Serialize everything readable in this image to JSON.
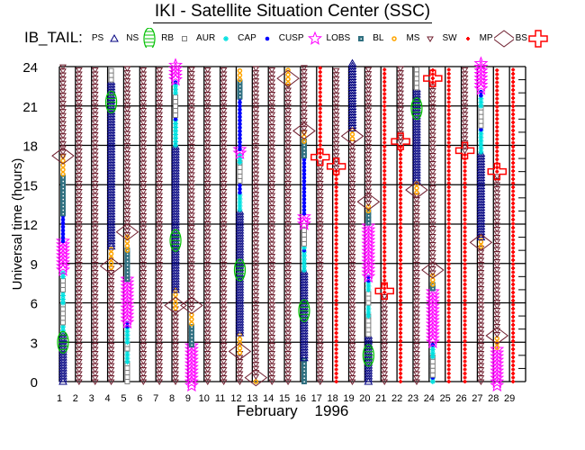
{
  "title": "IKI - Satellite Situation Center (SSC)",
  "satellite_label": "IB_TAIL:",
  "legend": [
    {
      "label": "PS",
      "symbol": "triangle-up",
      "color": "#000080"
    },
    {
      "label": "NS",
      "symbol": "circle",
      "color": "#00c000"
    },
    {
      "label": "RB",
      "symbol": "square",
      "color": "#808080"
    },
    {
      "label": "AUR",
      "symbol": "asterisk",
      "color": "#00e0e0"
    },
    {
      "label": "CAP",
      "symbol": "dot",
      "color": "#0000ff"
    },
    {
      "label": "CUSP",
      "symbol": "star",
      "color": "#ff00ff"
    },
    {
      "label": "LOBS",
      "symbol": "filled-square",
      "color": "#307080"
    },
    {
      "label": "BL",
      "symbol": "sun",
      "color": "#ffa500"
    },
    {
      "label": "MS",
      "symbol": "triangle-down",
      "color": "#702030"
    },
    {
      "label": "SW",
      "symbol": "splat",
      "color": "#ff0000"
    },
    {
      "label": "MP",
      "symbol": "diamond",
      "color": "#702030"
    },
    {
      "label": "BS",
      "symbol": "cross",
      "color": "#ff0000"
    }
  ],
  "chart_data": {
    "type": "scatter",
    "title": "IKI - Satellite Situation Center (SSC)",
    "xlabel": "February    1996",
    "ylabel": "Universal time (hours)",
    "xlim": [
      1,
      30
    ],
    "ylim": [
      0,
      24
    ],
    "xticks": [
      1,
      2,
      3,
      4,
      5,
      6,
      7,
      8,
      9,
      10,
      11,
      12,
      13,
      14,
      15,
      16,
      17,
      18,
      19,
      20,
      21,
      22,
      23,
      24,
      25,
      26,
      27,
      28,
      29
    ],
    "yticks": [
      0,
      3,
      6,
      9,
      12,
      15,
      18,
      21,
      24
    ],
    "grid": true,
    "segment_format": [
      "region",
      "from_hour",
      "to_hour"
    ],
    "marker_format": [
      "region",
      "hour"
    ],
    "days": [
      {
        "day": 1,
        "segments": [
          [
            "PS",
            0,
            3.9
          ],
          [
            "AUR",
            3.9,
            4.5
          ],
          [
            "RB",
            4.5,
            6
          ],
          [
            "AUR",
            6,
            7
          ],
          [
            "RB",
            7,
            8
          ],
          [
            "AUR",
            8,
            8.5
          ],
          [
            "CUSP",
            8.5,
            10.7
          ],
          [
            "CAP",
            10.7,
            12.8
          ],
          [
            "LOBS",
            12.8,
            15.8
          ],
          [
            "BL",
            15.8,
            17.2
          ],
          [
            "MS",
            17.2,
            24
          ]
        ],
        "markers": [
          [
            "NS",
            3
          ],
          [
            "MP",
            17.2
          ]
        ]
      },
      {
        "day": 2,
        "segments": [
          [
            "MS",
            0,
            24
          ]
        ],
        "markers": []
      },
      {
        "day": 3,
        "segments": [
          [
            "MS",
            0,
            24
          ]
        ],
        "markers": []
      },
      {
        "day": 4,
        "segments": [
          [
            "MS",
            0,
            8.7
          ],
          [
            "BL",
            8.7,
            10.3
          ],
          [
            "PS",
            10.3,
            23
          ],
          [
            "RB",
            23,
            24
          ]
        ],
        "markers": [
          [
            "MP",
            8.8
          ],
          [
            "NS",
            21.3
          ]
        ]
      },
      {
        "day": 5,
        "segments": [
          [
            "RB",
            0,
            1.5
          ],
          [
            "AUR",
            1.5,
            2.5
          ],
          [
            "RB",
            2.5,
            3
          ],
          [
            "AUR",
            3,
            4.2
          ],
          [
            "CAP",
            4.2,
            4.5
          ],
          [
            "CUSP",
            4.5,
            7.8
          ],
          [
            "LOBS",
            7.8,
            10
          ],
          [
            "BL",
            10,
            11.2
          ],
          [
            "MS",
            11.2,
            24
          ]
        ],
        "markers": [
          [
            "MP",
            11.4
          ]
        ]
      },
      {
        "day": 6,
        "segments": [
          [
            "MS",
            0,
            24
          ]
        ],
        "markers": []
      },
      {
        "day": 7,
        "segments": [
          [
            "MS",
            0,
            24
          ]
        ],
        "markers": []
      },
      {
        "day": 8,
        "segments": [
          [
            "MS",
            0,
            5.6
          ],
          [
            "BL",
            5.6,
            7
          ],
          [
            "PS",
            7,
            18
          ],
          [
            "AUR",
            18,
            20
          ],
          [
            "CAP",
            20,
            20.3
          ],
          [
            "RB",
            20.3,
            22
          ],
          [
            "AUR",
            22,
            22.8
          ],
          [
            "CAP",
            22.8,
            23
          ],
          [
            "CUSP",
            23,
            24.3
          ]
        ],
        "markers": [
          [
            "MP",
            5.8
          ],
          [
            "NS",
            10.75
          ]
        ]
      },
      {
        "day": 9,
        "segments": [
          [
            "CUSP",
            -0.3,
            2.8
          ],
          [
            "LOBS",
            2.8,
            4.4
          ],
          [
            "BL",
            4.4,
            5.4
          ],
          [
            "MS",
            5.6,
            24
          ]
        ],
        "markers": [
          [
            "MP",
            5.8
          ]
        ]
      },
      {
        "day": 10,
        "segments": [
          [
            "MS",
            0,
            24
          ]
        ],
        "markers": []
      },
      {
        "day": 11,
        "segments": [
          [
            "MS",
            0,
            24
          ]
        ],
        "markers": []
      },
      {
        "day": 12,
        "segments": [
          [
            "MS",
            0,
            2.2
          ],
          [
            "BL",
            2.2,
            3.7
          ],
          [
            "PS",
            3.7,
            13.1
          ],
          [
            "AUR",
            13.1,
            14.4
          ],
          [
            "CAP",
            14.4,
            15.3
          ],
          [
            "RB",
            15.3,
            16.7
          ],
          [
            "AUR",
            16.7,
            17.4
          ],
          [
            "CUSP",
            17.4,
            17.7
          ],
          [
            "CAP",
            17.7,
            21.7
          ],
          [
            "LOBS",
            21.7,
            23
          ],
          [
            "BL",
            23,
            24
          ]
        ],
        "markers": [
          [
            "MP",
            2.3
          ],
          [
            "NS",
            8.5
          ]
        ]
      },
      {
        "day": 13,
        "segments": [
          [
            "BL",
            0,
            0.2
          ],
          [
            "MS",
            0.4,
            24
          ]
        ],
        "markers": [
          [
            "MP",
            0.3
          ]
        ]
      },
      {
        "day": 14,
        "segments": [
          [
            "MS",
            0,
            24
          ]
        ],
        "markers": []
      },
      {
        "day": 15,
        "segments": [
          [
            "MS",
            0,
            22.7
          ],
          [
            "BL",
            22.7,
            24
          ]
        ],
        "markers": [
          [
            "MP",
            23.1
          ]
        ]
      },
      {
        "day": 16,
        "segments": [
          [
            "LOBS",
            0,
            1.8
          ],
          [
            "PS",
            1.8,
            8.5
          ],
          [
            "AUR",
            8.5,
            10
          ],
          [
            "CAP",
            10,
            10.2
          ],
          [
            "AUR",
            10.2,
            10.5
          ],
          [
            "RB",
            10.5,
            12
          ],
          [
            "CUSP",
            12,
            12.8
          ],
          [
            "CAP",
            12.8,
            17.2
          ],
          [
            "LOBS",
            17.2,
            18.3
          ],
          [
            "BL",
            18.3,
            19
          ],
          [
            "MS",
            19,
            24
          ]
        ],
        "markers": [
          [
            "NS",
            5.4
          ],
          [
            "MP",
            19.1
          ]
        ]
      },
      {
        "day": 17,
        "segments": [
          [
            "MS",
            0,
            16.9
          ],
          [
            "SW",
            17.1,
            24
          ]
        ],
        "markers": [
          [
            "BS",
            17.1
          ]
        ]
      },
      {
        "day": 18,
        "segments": [
          [
            "SW",
            0,
            16.3
          ],
          [
            "MS",
            16.3,
            24
          ]
        ],
        "markers": [
          [
            "BS",
            16.4
          ]
        ]
      },
      {
        "day": 19,
        "segments": [
          [
            "MS",
            0,
            18.5
          ],
          [
            "BL",
            18.5,
            19.3
          ],
          [
            "PS",
            19.3,
            24.3
          ]
        ],
        "markers": [
          [
            "MP",
            18.7
          ]
        ]
      },
      {
        "day": 20,
        "segments": [
          [
            "PS",
            0,
            3.6
          ],
          [
            "RB",
            3.6,
            5
          ],
          [
            "AUR",
            5,
            6
          ],
          [
            "RB",
            6,
            7
          ],
          [
            "AUR",
            7,
            7.7
          ],
          [
            "CAP",
            7.7,
            8
          ],
          [
            "CUSP",
            8,
            12.1
          ],
          [
            "LOBS",
            12.1,
            13
          ],
          [
            "BL",
            13,
            13.4
          ],
          [
            "MS",
            13.6,
            24
          ]
        ],
        "markers": [
          [
            "NS",
            2
          ],
          [
            "MP",
            13.7
          ]
        ]
      },
      {
        "day": 21,
        "segments": [
          [
            "MS",
            0,
            6.6
          ],
          [
            "SW",
            6.8,
            24
          ]
        ],
        "markers": [
          [
            "BS",
            6.9
          ]
        ]
      },
      {
        "day": 22,
        "segments": [
          [
            "SW",
            0,
            18.1
          ],
          [
            "MS",
            18.3,
            24
          ]
        ],
        "markers": [
          [
            "BS",
            18.3
          ]
        ]
      },
      {
        "day": 23,
        "segments": [
          [
            "MS",
            0,
            14.4
          ],
          [
            "BL",
            14.4,
            15.3
          ],
          [
            "PS",
            15.3,
            22.4
          ],
          [
            "RB",
            22.4,
            24
          ]
        ],
        "markers": [
          [
            "MP",
            14.6
          ],
          [
            "NS",
            20.8
          ]
        ]
      },
      {
        "day": 24,
        "segments": [
          [
            "AUR",
            0,
            0.3
          ],
          [
            "CAP",
            0.3,
            0.5
          ],
          [
            "RB",
            0.5,
            1.9
          ],
          [
            "AUR",
            1.9,
            2.8
          ],
          [
            "CAP",
            2.8,
            3
          ],
          [
            "CUSP",
            3,
            7.1
          ],
          [
            "LOBS",
            7.1,
            7.4
          ],
          [
            "BL",
            7.4,
            8.3
          ],
          [
            "MS",
            8.3,
            22.5
          ],
          [
            "SW",
            22.8,
            24
          ]
        ],
        "markers": [
          [
            "MP",
            8.5
          ],
          [
            "BS",
            23.1
          ]
        ]
      },
      {
        "day": 25,
        "segments": [
          [
            "SW",
            0,
            24
          ]
        ],
        "markers": []
      },
      {
        "day": 26,
        "segments": [
          [
            "SW",
            0,
            17.4
          ],
          [
            "MS",
            17.6,
            24
          ]
        ],
        "markers": [
          [
            "BS",
            17.6
          ]
        ]
      },
      {
        "day": 27,
        "segments": [
          [
            "MS",
            0,
            10.3
          ],
          [
            "BL",
            10.3,
            11
          ],
          [
            "PS",
            11,
            17.5
          ],
          [
            "AUR",
            17.5,
            19.2
          ],
          [
            "CAP",
            19.2,
            19.5
          ],
          [
            "RB",
            19.5,
            21
          ],
          [
            "AUR",
            21,
            21.8
          ],
          [
            "CAP",
            21.8,
            22.3
          ],
          [
            "CUSP",
            22.3,
            24.3
          ]
        ],
        "markers": [
          [
            "MP",
            10.6
          ]
        ]
      },
      {
        "day": 28,
        "segments": [
          [
            "CUSP",
            -0.3,
            2.6
          ],
          [
            "BL",
            2.6,
            3.4
          ],
          [
            "MS",
            3.6,
            15.7
          ],
          [
            "SW",
            16,
            24
          ]
        ],
        "markers": [
          [
            "MP",
            3.5
          ],
          [
            "BS",
            16
          ]
        ]
      },
      {
        "day": 29,
        "segments": [
          [
            "SW",
            0,
            24
          ]
        ],
        "markers": []
      }
    ]
  }
}
